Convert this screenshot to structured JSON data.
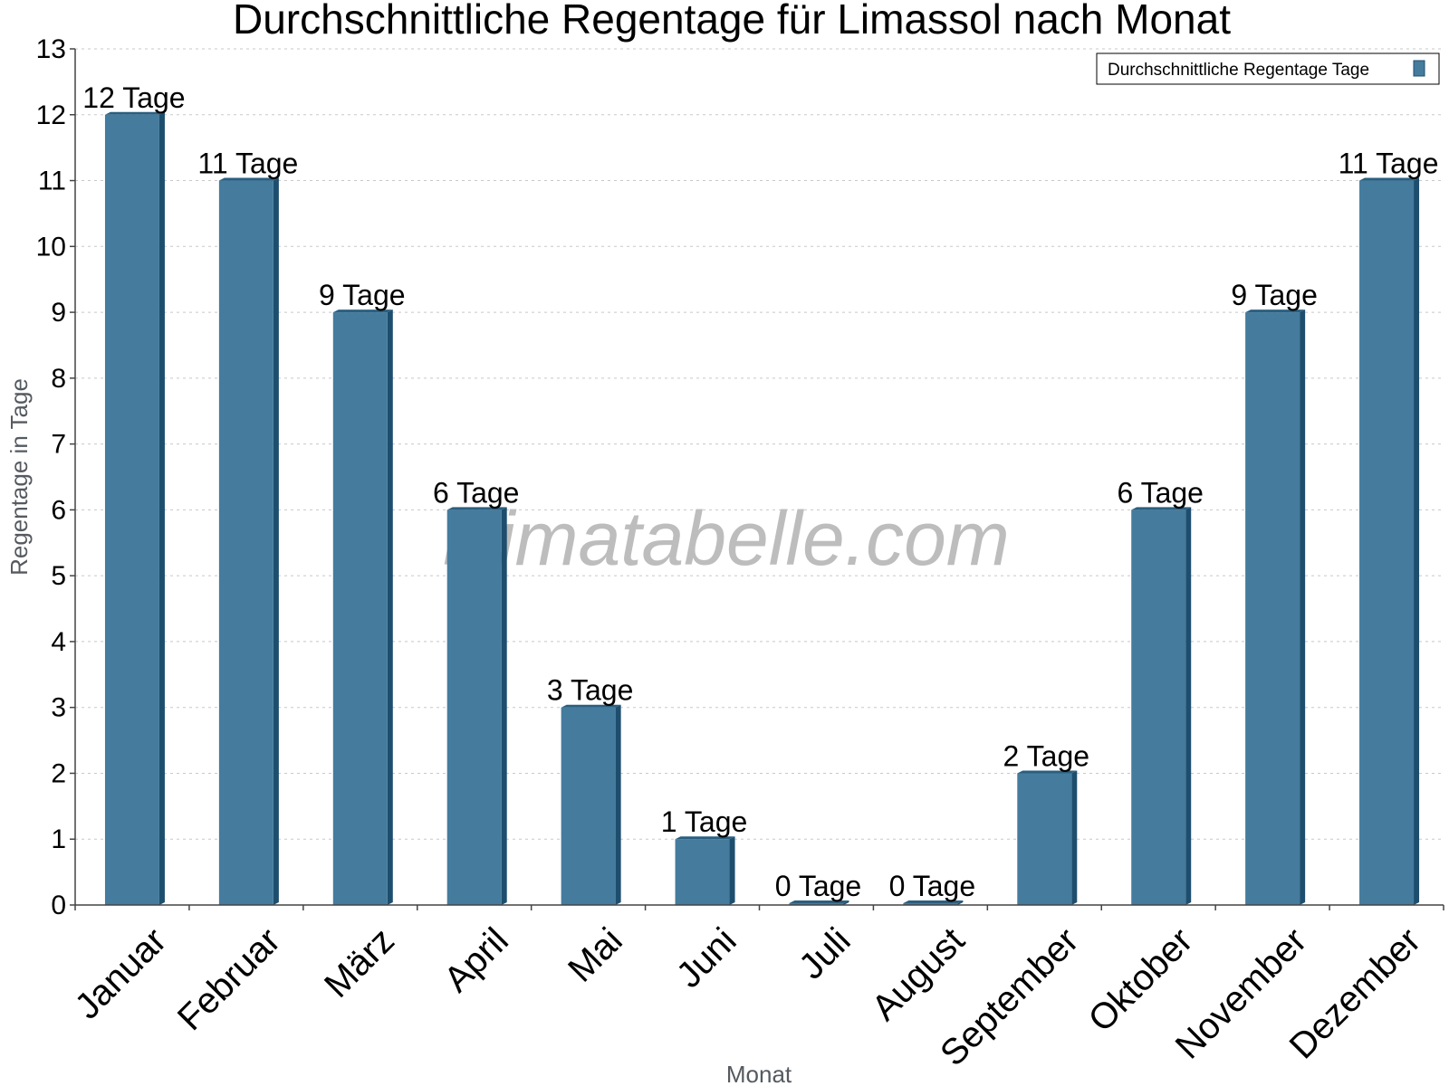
{
  "chart_data": {
    "type": "bar",
    "title": "Durchschnittliche Regentage für Limassol nach Monat",
    "xlabel": "Monat",
    "ylabel": "Regentage in Tage",
    "categories": [
      "Januar",
      "Februar",
      "März",
      "April",
      "Mai",
      "Juni",
      "Juli",
      "August",
      "September",
      "Oktober",
      "November",
      "Dezember"
    ],
    "series": [
      {
        "name": "Durchschnittliche Regentage Tage",
        "values": [
          12,
          11,
          9,
          6,
          3,
          1,
          0,
          0,
          2,
          6,
          9,
          11
        ],
        "labels": [
          "12 Tage",
          "11 Tage",
          "9 Tage",
          "6 Tage",
          "3 Tage",
          "1 Tage",
          "0 Tage",
          "0 Tage",
          "2 Tage",
          "6 Tage",
          "9 Tage",
          "11 Tage"
        ]
      }
    ],
    "ylim": [
      0,
      13
    ],
    "yticks": [
      "0",
      "1",
      "2",
      "3",
      "4",
      "5",
      "6",
      "7",
      "8",
      "9",
      "10",
      "11",
      "12",
      "13"
    ],
    "grid": true,
    "legend_position": "top-right",
    "colors": {
      "bar": "#457b9d",
      "bar_side": "#1d4e6e",
      "bar_top": "#2a5f80"
    },
    "watermark": "klimatabelle.com"
  }
}
